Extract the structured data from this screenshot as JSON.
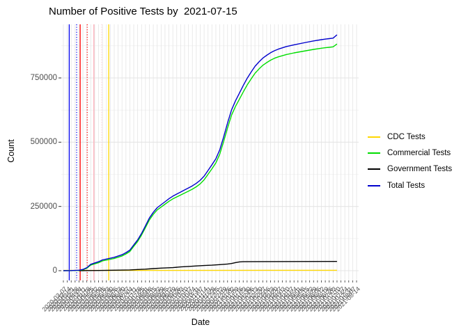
{
  "title": "Number of Positive Tests by  2021-07-15",
  "x_axis": {
    "label": "Date"
  },
  "y_axis": {
    "label": "Count",
    "ticks": [
      {
        "label": "0",
        "value": 0
      },
      {
        "label": "250000",
        "value": 250000
      },
      {
        "label": "500000",
        "value": 500000
      },
      {
        "label": "750000",
        "value": 750000
      }
    ]
  },
  "legend": {
    "entries": [
      {
        "label": "CDC Tests",
        "color": "#FFD700"
      },
      {
        "label": "Commercial Tests",
        "color": "#00DD00"
      },
      {
        "label": "Government Tests",
        "color": "#000000"
      },
      {
        "label": "Total Tests",
        "color": "#0000CD"
      }
    ]
  },
  "colors": {
    "grid_major": "#E4E4E4",
    "grid_minor": "#F1F1F1",
    "axis_text": "#4D4D4D",
    "tick_mark": "#333333",
    "background": "#FFFFFF"
  },
  "chart_data": {
    "type": "line",
    "title": "Number of Positive Tests by  2021-07-15",
    "xlabel": "Date",
    "ylabel": "Count",
    "ylim": [
      0,
      960000
    ],
    "grid": true,
    "legend_position": "right",
    "x_categories": [
      "2020-03-07",
      "2020-03-14",
      "2020-03-21",
      "2020-03-28",
      "2020-04-04",
      "2020-04-11",
      "2020-04-18",
      "2020-04-25",
      "2020-05-02",
      "2020-05-09",
      "2020-05-16",
      "2020-05-23",
      "2020-05-30",
      "2020-06-06",
      "2020-06-13",
      "2020-06-20",
      "2020-06-27",
      "2020-07-04",
      "2020-07-11",
      "2020-07-18",
      "2020-07-25",
      "2020-08-01",
      "2020-08-08",
      "2020-08-15",
      "2020-08-22",
      "2020-08-29",
      "2020-09-05",
      "2020-09-12",
      "2020-09-19",
      "2020-09-26",
      "2020-10-03",
      "2020-10-10",
      "2020-10-17",
      "2020-10-24",
      "2020-10-31",
      "2020-11-07",
      "2020-11-14",
      "2020-11-21",
      "2020-11-28",
      "2020-12-05",
      "2020-12-12",
      "2020-12-19",
      "2020-12-26",
      "2021-01-02",
      "2021-01-09",
      "2021-01-16",
      "2021-01-23",
      "2021-01-30",
      "2021-02-06",
      "2021-02-13",
      "2021-02-20",
      "2021-02-27",
      "2021-03-06",
      "2021-03-13",
      "2021-03-20",
      "2021-03-27",
      "2021-04-03",
      "2021-04-10",
      "2021-04-17",
      "2021-04-24",
      "2021-05-01",
      "2021-05-08",
      "2021-05-15",
      "2021-05-22",
      "2021-05-29",
      "2021-06-05",
      "2021-06-12",
      "2021-06-19",
      "2021-06-26",
      "2021-07-03",
      "2021-07-10",
      "2021-07-17",
      "2021-07-24",
      "2021-07-31",
      "2021-08-07",
      "2021-08-14"
    ],
    "y_gridlines_major": [
      0,
      250000,
      500000,
      750000
    ],
    "y_gridlines_minor": [
      125000,
      375000,
      625000,
      875000
    ],
    "series": [
      {
        "name": "CDC Tests",
        "color": "#FFD700",
        "points": [
          [
            0,
            1000
          ],
          [
            70,
            1500
          ]
        ]
      },
      {
        "name": "Commercial Tests",
        "color": "#00DD00",
        "points": [
          [
            0,
            0
          ],
          [
            2,
            300
          ],
          [
            4,
            1200
          ],
          [
            5,
            3500
          ],
          [
            6,
            9500
          ],
          [
            7,
            22000
          ],
          [
            9,
            31000
          ],
          [
            10,
            38000
          ],
          [
            13,
            47500
          ],
          [
            15,
            57000
          ],
          [
            16,
            65000
          ],
          [
            17,
            74500
          ],
          [
            18,
            94500
          ],
          [
            19,
            114000
          ],
          [
            20,
            139000
          ],
          [
            21,
            168000
          ],
          [
            22,
            197500
          ],
          [
            23,
            219000
          ],
          [
            24,
            236500
          ],
          [
            26,
            258500
          ],
          [
            27,
            270000
          ],
          [
            28,
            279500
          ],
          [
            29,
            287000
          ],
          [
            30,
            294500
          ],
          [
            31,
            302000
          ],
          [
            32,
            309500
          ],
          [
            33,
            317000
          ],
          [
            34,
            326500
          ],
          [
            35,
            338000
          ],
          [
            36,
            353500
          ],
          [
            37,
            375000
          ],
          [
            38,
            396500
          ],
          [
            39,
            419000
          ],
          [
            40,
            453000
          ],
          [
            41,
            502500
          ],
          [
            42,
            556000
          ],
          [
            43,
            604500
          ],
          [
            44,
            638500
          ],
          [
            45,
            666500
          ],
          [
            46,
            695000
          ],
          [
            47,
            722000
          ],
          [
            48,
            745500
          ],
          [
            49,
            768000
          ],
          [
            50,
            784500
          ],
          [
            51,
            799000
          ],
          [
            52,
            809500
          ],
          [
            53,
            819000
          ],
          [
            54,
            826500
          ],
          [
            55,
            832000
          ],
          [
            57,
            841000
          ],
          [
            59,
            847500
          ],
          [
            62,
            855500
          ],
          [
            64,
            861000
          ],
          [
            66,
            865500
          ],
          [
            67,
            867500
          ],
          [
            68,
            869000
          ],
          [
            69,
            871000
          ],
          [
            70,
            882000
          ]
        ]
      },
      {
        "name": "Government Tests",
        "color": "#000000",
        "points": [
          [
            4,
            0
          ],
          [
            9,
            700
          ],
          [
            13,
            1800
          ],
          [
            17,
            3000
          ],
          [
            19,
            4500
          ],
          [
            21,
            6000
          ],
          [
            23,
            8000
          ],
          [
            25,
            10000
          ],
          [
            28,
            12000
          ],
          [
            30,
            14500
          ],
          [
            32,
            16500
          ],
          [
            34,
            18500
          ],
          [
            36,
            20000
          ],
          [
            38,
            21500
          ],
          [
            40,
            23500
          ],
          [
            42,
            26000
          ],
          [
            43,
            28000
          ],
          [
            44,
            31500
          ],
          [
            45,
            34000
          ],
          [
            46,
            35000
          ],
          [
            53,
            35500
          ],
          [
            70,
            36000
          ]
        ]
      },
      {
        "name": "Total Tests",
        "color": "#0000CD",
        "points": [
          [
            0,
            0
          ],
          [
            2,
            500
          ],
          [
            4,
            2000
          ],
          [
            5,
            5000
          ],
          [
            6,
            12000
          ],
          [
            7,
            25000
          ],
          [
            9,
            35000
          ],
          [
            10,
            42000
          ],
          [
            13,
            52000
          ],
          [
            15,
            62000
          ],
          [
            16,
            70000
          ],
          [
            17,
            80000
          ],
          [
            18,
            100000
          ],
          [
            19,
            120000
          ],
          [
            20,
            145000
          ],
          [
            21,
            175000
          ],
          [
            22,
            205000
          ],
          [
            23,
            227000
          ],
          [
            24,
            245000
          ],
          [
            26,
            268000
          ],
          [
            27,
            280000
          ],
          [
            28,
            290000
          ],
          [
            29,
            298000
          ],
          [
            30,
            306000
          ],
          [
            31,
            314000
          ],
          [
            32,
            322000
          ],
          [
            33,
            330000
          ],
          [
            34,
            340000
          ],
          [
            35,
            352000
          ],
          [
            36,
            368000
          ],
          [
            37,
            390000
          ],
          [
            38,
            412000
          ],
          [
            39,
            435000
          ],
          [
            40,
            470000
          ],
          [
            41,
            520000
          ],
          [
            42,
            575000
          ],
          [
            43,
            625000
          ],
          [
            44,
            660000
          ],
          [
            45,
            690000
          ],
          [
            46,
            720000
          ],
          [
            47,
            748000
          ],
          [
            48,
            772000
          ],
          [
            49,
            795000
          ],
          [
            50,
            812000
          ],
          [
            51,
            827000
          ],
          [
            52,
            838000
          ],
          [
            53,
            848000
          ],
          [
            54,
            856000
          ],
          [
            55,
            862000
          ],
          [
            57,
            872000
          ],
          [
            59,
            879000
          ],
          [
            62,
            888000
          ],
          [
            64,
            894000
          ],
          [
            66,
            899000
          ],
          [
            67,
            901000
          ],
          [
            68,
            903000
          ],
          [
            69,
            905000
          ],
          [
            70,
            918000
          ]
        ]
      }
    ],
    "draw_order": [
      0,
      2,
      1,
      3
    ],
    "event_vlines": [
      {
        "x_index": 1.5,
        "color": "#0000EE",
        "style": "solid"
      },
      {
        "x_index": 3.4,
        "color": "#0000EE",
        "style": "dotted"
      },
      {
        "x_index": 4.3,
        "color": "#FF0000",
        "style": "solid"
      },
      {
        "x_index": 6.1,
        "color": "#FF0000",
        "style": "dotted"
      },
      {
        "x_index": 7.8,
        "color": "#FFAEB9",
        "style": "solid"
      },
      {
        "x_index": 9.8,
        "color": "#FFD0DA",
        "style": "dotted"
      },
      {
        "x_index": 11.6,
        "color": "#FFD700",
        "style": "solid"
      }
    ]
  }
}
